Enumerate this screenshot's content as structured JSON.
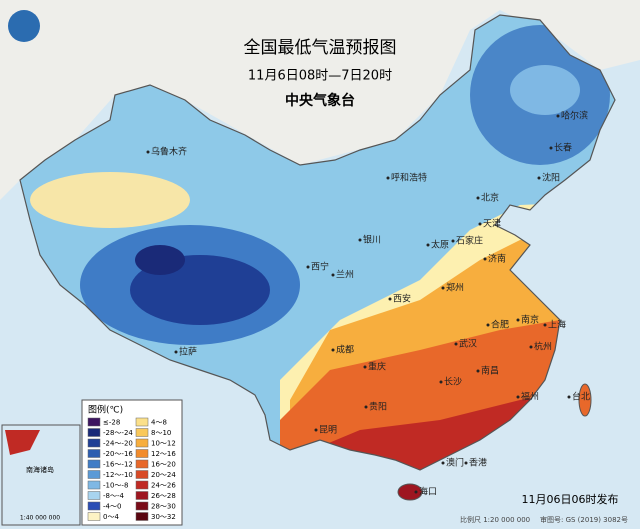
{
  "header": {
    "title": "全国最低气温预报图",
    "subtitle": "11月6日08时—7日20时",
    "agency": "中央气象台"
  },
  "legend": {
    "title": "图例(℃)",
    "items": [
      {
        "label": "≤-28",
        "color": "#3d1560"
      },
      {
        "label": "-28～-24",
        "color": "#1a2a78"
      },
      {
        "label": "-24～-20",
        "color": "#1f3f95"
      },
      {
        "label": "-20～-16",
        "color": "#2d5db0"
      },
      {
        "label": "-16～-12",
        "color": "#3f7cc6"
      },
      {
        "label": "-12～-10",
        "color": "#5b9ad6"
      },
      {
        "label": "-10～-8",
        "color": "#7fb8e4"
      },
      {
        "label": "-8～-4",
        "color": "#a8d4ef"
      },
      {
        "label": "-4～0",
        "color": "#2a4db5"
      },
      {
        "label": "0～4",
        "color": "#fdf3c4"
      },
      {
        "label": "4～8",
        "color": "#fbe08a"
      },
      {
        "label": "8～10",
        "color": "#f9c85a"
      },
      {
        "label": "10～12",
        "color": "#f7ae3e"
      },
      {
        "label": "12～16",
        "color": "#f28c2c"
      },
      {
        "label": "16～20",
        "color": "#e8682a"
      },
      {
        "label": "20～24",
        "color": "#d84a26"
      },
      {
        "label": "24～26",
        "color": "#c02a24"
      },
      {
        "label": "26～28",
        "color": "#9e1620"
      },
      {
        "label": "28～30",
        "color": "#7a0c18"
      },
      {
        "label": "30～32",
        "color": "#5a0610"
      }
    ]
  },
  "cities": [
    "乌鲁木齐",
    "哈尔滨",
    "长春",
    "沈阳",
    "呼和浩特",
    "北京",
    "天津",
    "银川",
    "太原",
    "石家庄",
    "济南",
    "西宁",
    "兰州",
    "郑州",
    "西安",
    "合肥",
    "南京",
    "上海",
    "成都",
    "武汉",
    "杭州",
    "重庆",
    "长沙",
    "南昌",
    "拉萨",
    "贵阳",
    "福州",
    "台北",
    "昆明",
    "澳门",
    "香港",
    "海口"
  ],
  "inset": {
    "title": "南海诸岛",
    "scale": "1:40 000 000"
  },
  "footer": {
    "issued": "11月06日06时发布",
    "scale": "比例尺 1:20 000 000",
    "approval": "审图号: GS (2019) 3082号"
  }
}
